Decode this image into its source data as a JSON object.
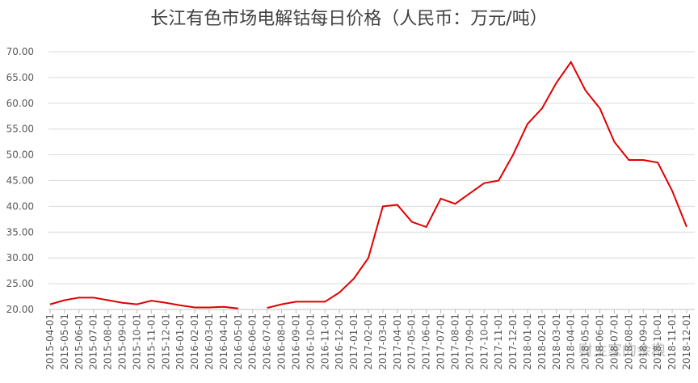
{
  "chart_data": {
    "type": "line",
    "title": "长江有色市场电解钴每日价格（人民币：万元/吨）",
    "watermark": "财主家的余粮",
    "categories": [
      "2015-04-01",
      "2015-05-01",
      "2015-06-01",
      "2015-07-01",
      "2015-08-01",
      "2015-09-01",
      "2015-10-01",
      "2015-11-01",
      "2015-12-01",
      "2016-01-01",
      "2016-02-01",
      "2016-03-01",
      "2016-04-01",
      "2016-05-01",
      "2016-06-01",
      "2016-07-01",
      "2016-08-01",
      "2016-09-01",
      "2016-10-01",
      "2016-11-01",
      "2016-12-01",
      "2017-01-01",
      "2017-02-01",
      "2017-03-01",
      "2017-04-01",
      "2017-05-01",
      "2017-06-01",
      "2017-07-01",
      "2017-08-01",
      "2017-09-01",
      "2017-10-01",
      "2017-11-01",
      "2017-12-01",
      "2018-01-01",
      "2018-02-01",
      "2018-03-01",
      "2018-04-01",
      "2018-05-01",
      "2018-06-01",
      "2018-07-01",
      "2018-08-01",
      "2018-09-01",
      "2018-10-01",
      "2018-11-01",
      "2018-12-01"
    ],
    "values": [
      21.0,
      21.8,
      22.3,
      22.3,
      21.8,
      21.3,
      21.0,
      21.7,
      21.3,
      20.8,
      20.4,
      20.4,
      20.5,
      20.2,
      null,
      20.3,
      21.0,
      21.5,
      21.5,
      21.5,
      23.3,
      26.0,
      30.0,
      40.0,
      40.3,
      37.0,
      36.0,
      41.5,
      40.5,
      42.5,
      44.5,
      45.0,
      50.0,
      56.0,
      59.0,
      64.0,
      68.0,
      62.5,
      59.0,
      52.5,
      49.0,
      49.0,
      48.5,
      43.0,
      36.0
    ],
    "color": "#e00000",
    "ylim": [
      20,
      70
    ],
    "yticks": [
      {
        "value": 20,
        "label": "20.00"
      },
      {
        "value": 25,
        "label": "25.00"
      },
      {
        "value": 30,
        "label": "30.00"
      },
      {
        "value": 35,
        "label": "35.00"
      },
      {
        "value": 40,
        "label": "40.00"
      },
      {
        "value": 45,
        "label": "45.00"
      },
      {
        "value": 50,
        "label": "50.00"
      },
      {
        "value": 55,
        "label": "55.00"
      },
      {
        "value": 60,
        "label": "60.00"
      },
      {
        "value": 65,
        "label": "65.00"
      },
      {
        "value": 70,
        "label": "70.00"
      }
    ],
    "grid": true
  }
}
